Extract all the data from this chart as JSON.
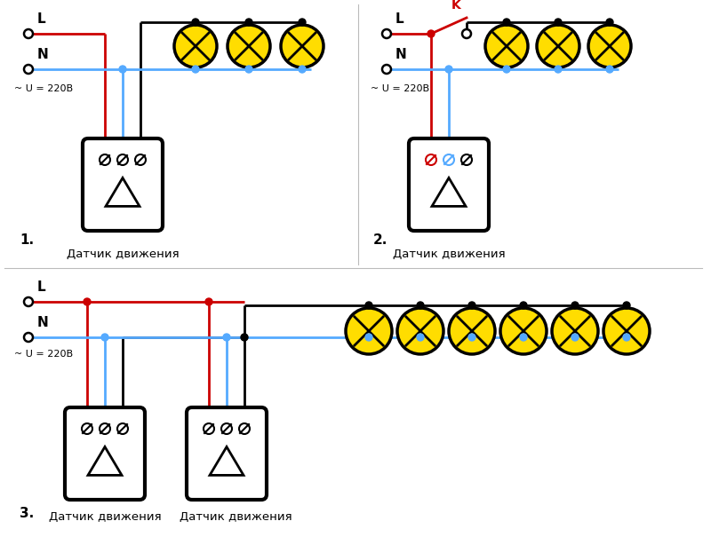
{
  "bg_color": "#ffffff",
  "line_black": "#000000",
  "line_red": "#cc0000",
  "line_blue": "#55aaff",
  "lamp_fill": "#ffdd00",
  "lamp_stroke": "#000000",
  "sensor_fill": "#ffffff",
  "sensor_stroke": "#000000",
  "switch_red": "#cc0000",
  "diagram1": {
    "number": "1.",
    "label": "Датчик движения",
    "num_lamps": 3,
    "voltage_label": "~ U = 220В"
  },
  "diagram2": {
    "number": "2.",
    "label": "Датчик движения",
    "num_lamps": 3,
    "switch_label": "K",
    "voltage_label": "~ U = 220В"
  },
  "diagram3": {
    "number": "3.",
    "label1": "Датчик движения",
    "label2": "Датчик движения",
    "num_lamps": 6,
    "voltage_label": "~ U = 220В"
  }
}
